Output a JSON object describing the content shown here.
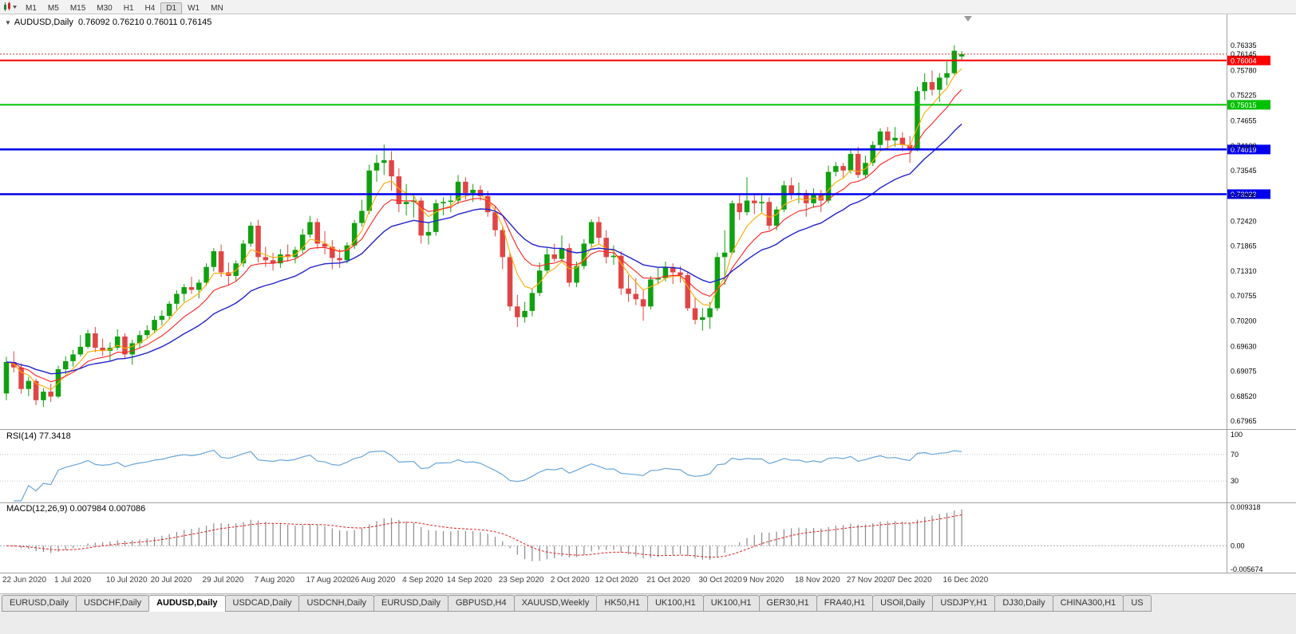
{
  "toolbar": {
    "timeframes": [
      "M1",
      "M5",
      "M15",
      "M30",
      "H1",
      "H4",
      "D1",
      "W1",
      "MN"
    ],
    "active_timeframe": "D1"
  },
  "header": {
    "collapse_glyph": "▼",
    "symbol_period": "AUDUSD,Daily",
    "ohlc": "0.76092 0.76210 0.76011 0.76145"
  },
  "chart_data": {
    "type": "candlestick",
    "symbol": "AUDUSD",
    "period": "Daily",
    "quote": {
      "open": "0.76092",
      "high": "0.76210",
      "low": "0.76011",
      "close": "0.76145"
    },
    "price_axis": {
      "max": 0.7664,
      "min": 0.6784,
      "ticks": [
        "0.76335",
        "0.76145",
        "0.75780",
        "0.75225",
        "0.74655",
        "0.74100",
        "0.73545",
        "0.72990",
        "0.72420",
        "0.71865",
        "0.71310",
        "0.70755",
        "0.70200",
        "0.69630",
        "0.69075",
        "0.68520",
        "0.67965"
      ]
    },
    "candles": [
      [
        0.6858,
        0.694,
        0.6843,
        0.6928
      ],
      [
        0.6928,
        0.6952,
        0.6905,
        0.6916
      ],
      [
        0.6916,
        0.6925,
        0.6858,
        0.6868
      ],
      [
        0.6868,
        0.6895,
        0.6852,
        0.6886
      ],
      [
        0.6886,
        0.689,
        0.6832,
        0.6843
      ],
      [
        0.6843,
        0.687,
        0.6828,
        0.6862
      ],
      [
        0.6862,
        0.688,
        0.6839,
        0.6851
      ],
      [
        0.6851,
        0.692,
        0.6848,
        0.6912
      ],
      [
        0.6912,
        0.6941,
        0.6901,
        0.693
      ],
      [
        0.693,
        0.6955,
        0.6918,
        0.6945
      ],
      [
        0.6945,
        0.6988,
        0.694,
        0.6962
      ],
      [
        0.6962,
        0.7,
        0.6958,
        0.6992
      ],
      [
        0.6992,
        0.7006,
        0.695,
        0.696
      ],
      [
        0.696,
        0.698,
        0.6942,
        0.6953
      ],
      [
        0.6953,
        0.6972,
        0.693,
        0.696
      ],
      [
        0.696,
        0.7001,
        0.6955,
        0.6985
      ],
      [
        0.6985,
        0.6992,
        0.6935,
        0.6945
      ],
      [
        0.6945,
        0.6978,
        0.6922,
        0.697
      ],
      [
        0.697,
        0.6998,
        0.696,
        0.6988
      ],
      [
        0.6988,
        0.701,
        0.698,
        0.6999
      ],
      [
        0.6999,
        0.7031,
        0.6992,
        0.7022
      ],
      [
        0.7022,
        0.7043,
        0.701,
        0.7031
      ],
      [
        0.7031,
        0.7064,
        0.7022,
        0.7058
      ],
      [
        0.7058,
        0.7088,
        0.7045,
        0.708
      ],
      [
        0.708,
        0.7102,
        0.7062,
        0.7095
      ],
      [
        0.7095,
        0.7118,
        0.708,
        0.7089
      ],
      [
        0.7089,
        0.7112,
        0.707,
        0.7105
      ],
      [
        0.7105,
        0.7148,
        0.7098,
        0.714
      ],
      [
        0.714,
        0.7182,
        0.713,
        0.7175
      ],
      [
        0.7175,
        0.719,
        0.7118,
        0.7128
      ],
      [
        0.7128,
        0.715,
        0.71,
        0.712
      ],
      [
        0.712,
        0.7155,
        0.7108,
        0.7148
      ],
      [
        0.7148,
        0.72,
        0.714,
        0.7192
      ],
      [
        0.7192,
        0.724,
        0.7185,
        0.7232
      ],
      [
        0.7232,
        0.7245,
        0.715,
        0.7162
      ],
      [
        0.7162,
        0.7185,
        0.714,
        0.7155
      ],
      [
        0.7155,
        0.7172,
        0.7132,
        0.7148
      ],
      [
        0.7148,
        0.718,
        0.7138,
        0.7168
      ],
      [
        0.7168,
        0.719,
        0.7152,
        0.7162
      ],
      [
        0.7162,
        0.7185,
        0.7148,
        0.7178
      ],
      [
        0.7178,
        0.7225,
        0.717,
        0.7212
      ],
      [
        0.7212,
        0.7254,
        0.7205,
        0.724
      ],
      [
        0.724,
        0.7248,
        0.718,
        0.7192
      ],
      [
        0.7192,
        0.722,
        0.7168,
        0.7185
      ],
      [
        0.7185,
        0.72,
        0.7135,
        0.716
      ],
      [
        0.716,
        0.718,
        0.7138,
        0.7155
      ],
      [
        0.7155,
        0.7195,
        0.7148,
        0.7188
      ],
      [
        0.7188,
        0.7245,
        0.718,
        0.7238
      ],
      [
        0.7238,
        0.729,
        0.723,
        0.7265
      ],
      [
        0.7265,
        0.7368,
        0.7258,
        0.7355
      ],
      [
        0.7355,
        0.739,
        0.733,
        0.7372
      ],
      [
        0.7372,
        0.7413,
        0.7345,
        0.7378
      ],
      [
        0.7378,
        0.7398,
        0.731,
        0.7342
      ],
      [
        0.7342,
        0.736,
        0.7262,
        0.728
      ],
      [
        0.728,
        0.7325,
        0.7255,
        0.7285
      ],
      [
        0.7285,
        0.7302,
        0.725,
        0.7288
      ],
      [
        0.7288,
        0.7295,
        0.7192,
        0.721
      ],
      [
        0.721,
        0.724,
        0.719,
        0.7218
      ],
      [
        0.7218,
        0.729,
        0.721,
        0.7282
      ],
      [
        0.7282,
        0.7295,
        0.7255,
        0.7285
      ],
      [
        0.7285,
        0.73,
        0.7262,
        0.7288
      ],
      [
        0.7288,
        0.7345,
        0.728,
        0.733
      ],
      [
        0.733,
        0.734,
        0.729,
        0.7305
      ],
      [
        0.7305,
        0.7325,
        0.7285,
        0.7312
      ],
      [
        0.7312,
        0.7322,
        0.7288,
        0.7298
      ],
      [
        0.7298,
        0.731,
        0.7252,
        0.7262
      ],
      [
        0.7262,
        0.7275,
        0.7208,
        0.7222
      ],
      [
        0.7222,
        0.723,
        0.7135,
        0.7162
      ],
      [
        0.7162,
        0.7172,
        0.7042,
        0.7052
      ],
      [
        0.7052,
        0.7078,
        0.7006,
        0.7028
      ],
      [
        0.7028,
        0.7062,
        0.7016,
        0.7042
      ],
      [
        0.7042,
        0.7092,
        0.703,
        0.7082
      ],
      [
        0.7082,
        0.715,
        0.7075,
        0.7132
      ],
      [
        0.7132,
        0.7182,
        0.7125,
        0.7168
      ],
      [
        0.7168,
        0.7192,
        0.7152,
        0.7158
      ],
      [
        0.7158,
        0.721,
        0.715,
        0.7182
      ],
      [
        0.7182,
        0.7192,
        0.7096,
        0.7105
      ],
      [
        0.7105,
        0.7152,
        0.7095,
        0.7142
      ],
      [
        0.7142,
        0.7202,
        0.7135,
        0.7192
      ],
      [
        0.7192,
        0.7246,
        0.7185,
        0.724
      ],
      [
        0.724,
        0.7252,
        0.7192,
        0.7205
      ],
      [
        0.7205,
        0.7222,
        0.7148,
        0.7162
      ],
      [
        0.7162,
        0.7188,
        0.7145,
        0.7165
      ],
      [
        0.7165,
        0.7175,
        0.7078,
        0.7092
      ],
      [
        0.7092,
        0.7122,
        0.7062,
        0.708
      ],
      [
        0.708,
        0.7115,
        0.7055,
        0.7068
      ],
      [
        0.7068,
        0.7088,
        0.702,
        0.7052
      ],
      [
        0.7052,
        0.712,
        0.7045,
        0.7112
      ],
      [
        0.7112,
        0.714,
        0.7102,
        0.7115
      ],
      [
        0.7115,
        0.7152,
        0.7108,
        0.714
      ],
      [
        0.714,
        0.7148,
        0.7102,
        0.7128
      ],
      [
        0.7128,
        0.7142,
        0.7105,
        0.7122
      ],
      [
        0.7122,
        0.713,
        0.7042,
        0.7048
      ],
      [
        0.7048,
        0.7072,
        0.7012,
        0.7022
      ],
      [
        0.7022,
        0.7048,
        0.6998,
        0.7028
      ],
      [
        0.7028,
        0.7062,
        0.7002,
        0.7048
      ],
      [
        0.7048,
        0.7172,
        0.7042,
        0.7162
      ],
      [
        0.7162,
        0.7222,
        0.71,
        0.7172
      ],
      [
        0.7172,
        0.7288,
        0.7168,
        0.7282
      ],
      [
        0.7282,
        0.7302,
        0.7245,
        0.7262
      ],
      [
        0.7262,
        0.734,
        0.7255,
        0.7288
      ],
      [
        0.7288,
        0.7302,
        0.7258,
        0.7282
      ],
      [
        0.7282,
        0.7302,
        0.7262,
        0.7285
      ],
      [
        0.7285,
        0.7295,
        0.7222,
        0.7232
      ],
      [
        0.7232,
        0.7275,
        0.7222,
        0.7268
      ],
      [
        0.7268,
        0.7332,
        0.7262,
        0.7322
      ],
      [
        0.7322,
        0.7339,
        0.729,
        0.7302
      ],
      [
        0.7302,
        0.7328,
        0.7282,
        0.7305
      ],
      [
        0.7305,
        0.7312,
        0.7252,
        0.7282
      ],
      [
        0.7282,
        0.7315,
        0.7272,
        0.7302
      ],
      [
        0.7302,
        0.7312,
        0.7262,
        0.7288
      ],
      [
        0.7288,
        0.7366,
        0.7282,
        0.7352
      ],
      [
        0.7352,
        0.7374,
        0.7342,
        0.7365
      ],
      [
        0.7365,
        0.7372,
        0.734,
        0.7355
      ],
      [
        0.7355,
        0.7405,
        0.7348,
        0.7392
      ],
      [
        0.7392,
        0.7408,
        0.7338,
        0.7345
      ],
      [
        0.7345,
        0.7388,
        0.7338,
        0.7372
      ],
      [
        0.7372,
        0.742,
        0.7365,
        0.7412
      ],
      [
        0.7412,
        0.7449,
        0.7402,
        0.7442
      ],
      [
        0.7442,
        0.7452,
        0.74,
        0.7422
      ],
      [
        0.7422,
        0.7452,
        0.7408,
        0.7428
      ],
      [
        0.7428,
        0.744,
        0.7398,
        0.7412
      ],
      [
        0.7412,
        0.7432,
        0.7372,
        0.7402
      ],
      [
        0.7402,
        0.7542,
        0.7398,
        0.7532
      ],
      [
        0.7532,
        0.7572,
        0.7512,
        0.7552
      ],
      [
        0.7552,
        0.7578,
        0.7522,
        0.7535
      ],
      [
        0.7535,
        0.7572,
        0.7508,
        0.7562
      ],
      [
        0.7562,
        0.7598,
        0.7545,
        0.7572
      ],
      [
        0.7572,
        0.7634,
        0.7568,
        0.7622
      ],
      [
        0.76092,
        0.7621,
        0.76011,
        0.76145
      ]
    ],
    "date_labels": [
      {
        "label": "22 Jun 2020",
        "index": 0
      },
      {
        "label": "1 Jul 2020",
        "index": 7
      },
      {
        "label": "10 Jul 2020",
        "index": 14
      },
      {
        "label": "20 Jul 2020",
        "index": 20
      },
      {
        "label": "29 Jul 2020",
        "index": 27
      },
      {
        "label": "7 Aug 2020",
        "index": 34
      },
      {
        "label": "17 Aug 2020",
        "index": 41
      },
      {
        "label": "26 Aug 2020",
        "index": 47
      },
      {
        "label": "4 Sep 2020",
        "index": 54
      },
      {
        "label": "14 Sep 2020",
        "index": 60
      },
      {
        "label": "23 Sep 2020",
        "index": 67
      },
      {
        "label": "2 Oct 2020",
        "index": 74
      },
      {
        "label": "12 Oct 2020",
        "index": 80
      },
      {
        "label": "21 Oct 2020",
        "index": 87
      },
      {
        "label": "30 Oct 2020",
        "index": 94
      },
      {
        "label": "9 Nov 2020",
        "index": 100
      },
      {
        "label": "18 Nov 2020",
        "index": 107
      },
      {
        "label": "27 Nov 2020",
        "index": 114
      },
      {
        "label": "7 Dec 2020",
        "index": 120
      },
      {
        "label": "16 Dec 2020",
        "index": 127
      }
    ],
    "hlines": [
      {
        "price": 0.76004,
        "label": "0.76004",
        "color": "#ff0000",
        "width": 2
      },
      {
        "price": 0.75015,
        "label": "0.75015",
        "color": "#00c000",
        "width": 2
      },
      {
        "price": 0.74019,
        "label": "0.74019",
        "color": "#0000ee",
        "width": 2.5
      },
      {
        "price": 0.73023,
        "label": "0.73023",
        "color": "#0000ee",
        "width": 2.5
      }
    ],
    "bid_line": {
      "price": 0.76145,
      "color": "#cc3333"
    },
    "moving_averages": [
      {
        "period": 5,
        "method": "ema",
        "color": "#ffaa00"
      },
      {
        "period": 10,
        "method": "ema",
        "color": "#ff2222"
      },
      {
        "period": 21,
        "method": "ema",
        "color": "#2222cc"
      }
    ],
    "indicators": {
      "rsi": {
        "label": "RSI(14) 77.3418",
        "period": 14,
        "value": 77.3418,
        "levels": [
          "100",
          "70",
          "30"
        ],
        "level_values": [
          100,
          70,
          30
        ],
        "color": "#6aa5d8"
      },
      "macd": {
        "label": "MACD(12,26,9) 0.007984 0.007086",
        "fast": 12,
        "slow": 26,
        "signal_period": 9,
        "hist_color": "#8c8c8c",
        "signal_color": "#dd2222",
        "axis_ticks": [
          "0.009318",
          "0.00",
          "-0.005674"
        ],
        "axis_values": [
          0.009318,
          0.0,
          -0.005674
        ]
      }
    },
    "colors": {
      "up": "#10a010",
      "down": "#e04545",
      "background": "#ffffff",
      "scale_text": "#000000",
      "date_text": "#3c3c3c"
    }
  },
  "tabs": {
    "items": [
      "EURUSD,Daily",
      "USDCHF,Daily",
      "AUDUSD,Daily",
      "USDCAD,Daily",
      "USDCNH,Daily",
      "EURUSD,Daily",
      "GBPUSD,H4",
      "XAUUSD,Weekly",
      "HK50,H1",
      "UK100,H1",
      "UK100,H1",
      "GER30,H1",
      "FRA40,H1",
      "USOil,Daily",
      "USDJPY,H1",
      "DJ30,Daily",
      "CHINA300,H1",
      "US"
    ],
    "active_index": 2
  }
}
